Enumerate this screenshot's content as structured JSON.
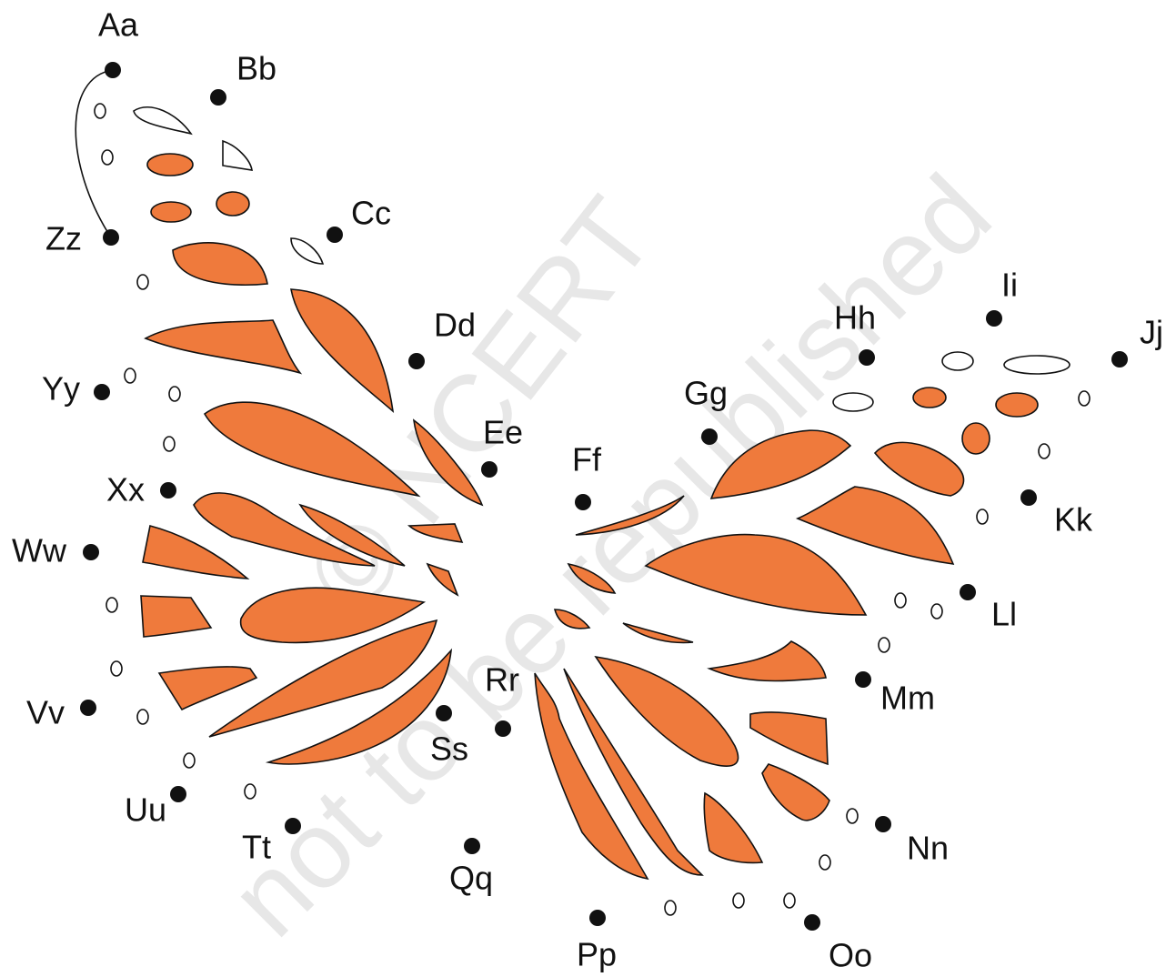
{
  "labels": [
    "Aa",
    "Bb",
    "Cc",
    "Dd",
    "Ee",
    "Ff",
    "Gg",
    "Hh",
    "Ii",
    "Jj",
    "Kk",
    "Ll",
    "Mm",
    "Nn",
    "Oo",
    "Pp",
    "Qq",
    "Rr",
    "Ss",
    "Tt",
    "Uu",
    "Vv",
    "Ww",
    "Xx",
    "Yy",
    "Zz"
  ],
  "watermark": {
    "copyright": "© NCERT",
    "notice": "not to be republished"
  }
}
